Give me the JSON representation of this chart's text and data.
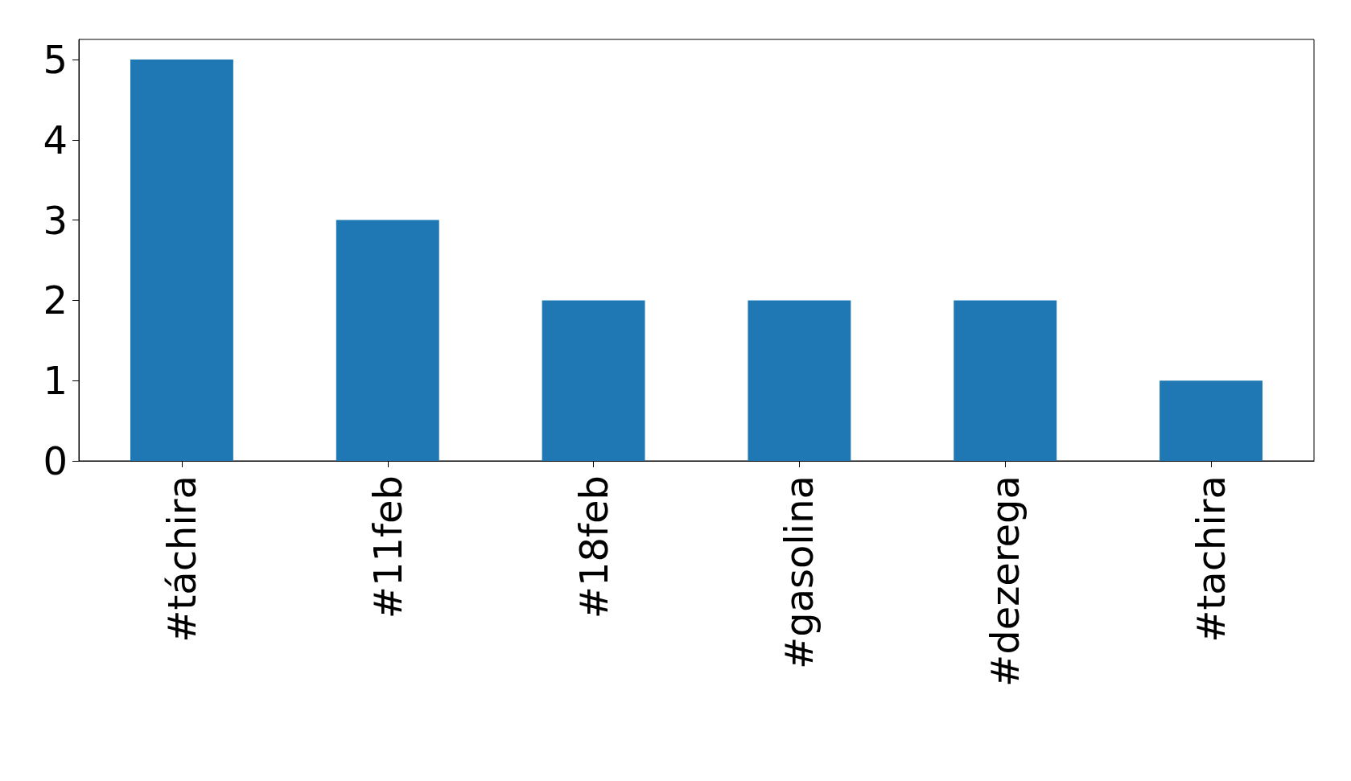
{
  "chart_data": {
    "type": "bar",
    "categories": [
      "#táchira",
      "#11feb",
      "#18feb",
      "#gasolina",
      "#dezerega",
      "#tachira"
    ],
    "values": [
      5,
      3,
      2,
      2,
      2,
      1
    ],
    "color": "#1f77b4",
    "ylim": [
      0,
      5.25
    ],
    "yticks": [
      0,
      1,
      2,
      3,
      4,
      5
    ],
    "grid": false
  }
}
